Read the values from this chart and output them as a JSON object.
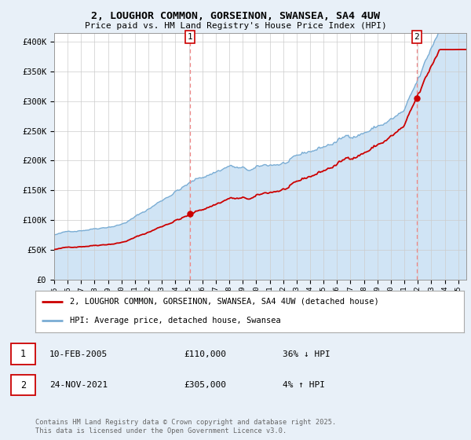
{
  "title_line1": "2, LOUGHOR COMMON, GORSEINON, SWANSEA, SA4 4UW",
  "title_line2": "Price paid vs. HM Land Registry's House Price Index (HPI)",
  "ylabel_ticks": [
    "£0",
    "£50K",
    "£100K",
    "£150K",
    "£200K",
    "£250K",
    "£300K",
    "£350K",
    "£400K"
  ],
  "ytick_values": [
    0,
    50000,
    100000,
    150000,
    200000,
    250000,
    300000,
    350000,
    400000
  ],
  "ylim": [
    0,
    415000
  ],
  "xlim_start": 1995.0,
  "xlim_end": 2025.6,
  "hpi_color": "#7aadd4",
  "hpi_fill_color": "#d0e4f5",
  "price_color": "#cc0000",
  "vline_color": "#ee8888",
  "background_color": "#e8f0f8",
  "plot_bg_color": "#ffffff",
  "legend_items": [
    "2, LOUGHOR COMMON, GORSEINON, SWANSEA, SA4 4UW (detached house)",
    "HPI: Average price, detached house, Swansea"
  ],
  "transaction1": {
    "label": "1",
    "date": "10-FEB-2005",
    "price": "£110,000",
    "hpi": "36% ↓ HPI",
    "x_year": 2005.1
  },
  "transaction2": {
    "label": "2",
    "date": "24-NOV-2021",
    "price": "£305,000",
    "hpi": "4% ↑ HPI",
    "x_year": 2021.92
  },
  "footer": "Contains HM Land Registry data © Crown copyright and database right 2025.\nThis data is licensed under the Open Government Licence v3.0.",
  "xtick_years": [
    "1995",
    "1996",
    "1997",
    "1998",
    "1999",
    "2000",
    "2001",
    "2002",
    "2003",
    "2004",
    "2005",
    "2006",
    "2007",
    "2008",
    "2009",
    "2010",
    "2011",
    "2012",
    "2013",
    "2014",
    "2015",
    "2016",
    "2017",
    "2018",
    "2019",
    "2020",
    "2021",
    "2022",
    "2023",
    "2024",
    "2025"
  ]
}
